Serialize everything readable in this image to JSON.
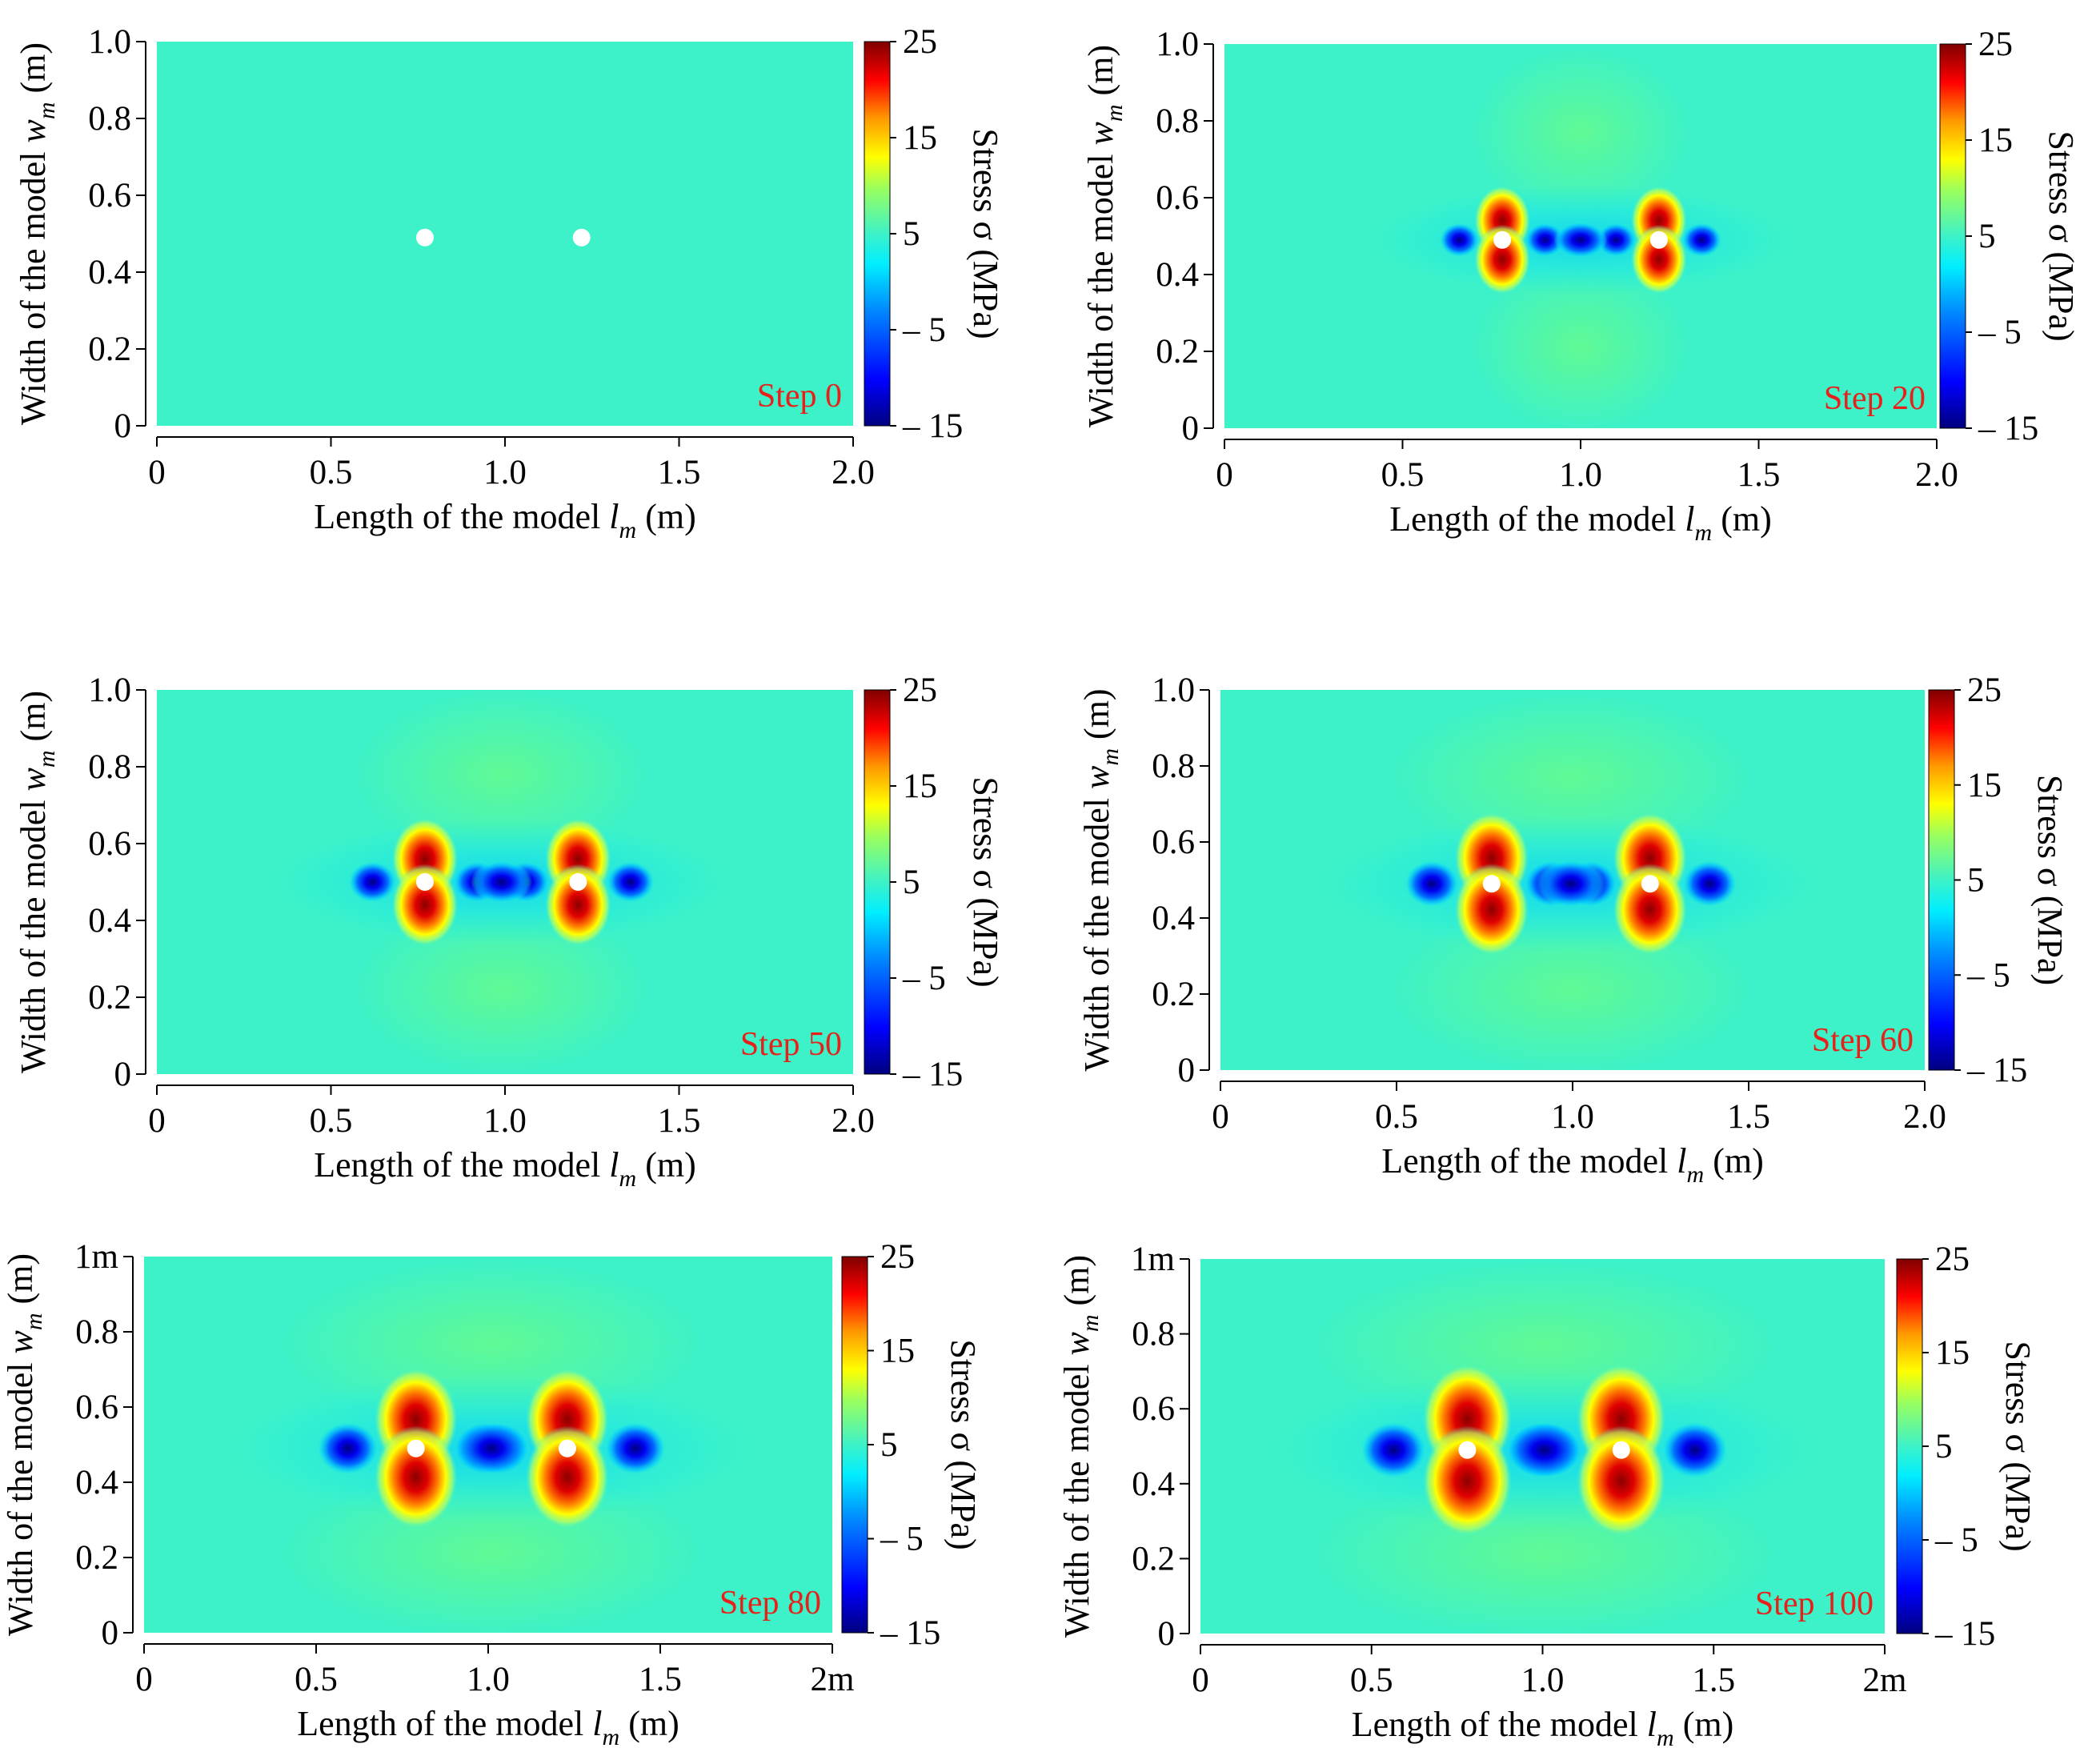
{
  "figure": {
    "colorbar": {
      "label": "Stress  σ  (MPa)",
      "tick_labels": [
        "25",
        "15",
        "5",
        "– 5",
        "– 15"
      ],
      "ticks": [
        25,
        15,
        5,
        -5,
        -15
      ],
      "range": [
        -15,
        25
      ],
      "colormap": [
        "#00007f",
        "#0000ff",
        "#00ffff",
        "#ffff00",
        "#ff0000",
        "#7f0000"
      ],
      "background_stress_color": "#3df2c8"
    },
    "hole_color": "#ffffff"
  },
  "chart_data": [
    {
      "type": "heatmap",
      "step_label": "Step 0",
      "xlabel_main": "Length of the model",
      "xlabel_sym": "l",
      "xlabel_sub": "m",
      "xlabel_unit": "(m)",
      "ylabel_main": "Width of the model",
      "ylabel_sym": "w",
      "ylabel_sub": "m",
      "ylabel_unit": "(m)",
      "xlim": [
        0,
        2.0
      ],
      "ylim": [
        0,
        1.0
      ],
      "x_ticks": [
        0,
        0.5,
        1.0,
        1.5,
        2.0
      ],
      "x_tick_labels": [
        "0",
        "0.5",
        "1.0",
        "1.5",
        "2.0"
      ],
      "y_ticks": [
        0,
        0.2,
        0.4,
        0.6,
        0.8,
        1.0
      ],
      "y_tick_labels": [
        "0",
        "0.2",
        "0.4",
        "0.6",
        "0.8",
        "1.0"
      ],
      "holes": [
        {
          "x": 0.77,
          "y": 0.49
        },
        {
          "x": 1.22,
          "y": 0.49
        }
      ],
      "peak_tension_stress": 0,
      "peak_compression_stress": 0
    },
    {
      "type": "heatmap",
      "step_label": "Step 20",
      "xlabel_main": "Length of the model",
      "xlabel_sym": "l",
      "xlabel_sub": "m",
      "xlabel_unit": "(m)",
      "ylabel_main": "Width of the model",
      "ylabel_sym": "w",
      "ylabel_sub": "m",
      "ylabel_unit": "(m)",
      "xlim": [
        0,
        2.0
      ],
      "ylim": [
        0,
        1.0
      ],
      "x_ticks": [
        0,
        0.5,
        1.0,
        1.5,
        2.0
      ],
      "x_tick_labels": [
        "0",
        "0.5",
        "1.0",
        "1.5",
        "2.0"
      ],
      "y_ticks": [
        0,
        0.2,
        0.4,
        0.6,
        0.8,
        1.0
      ],
      "y_tick_labels": [
        "0",
        "0.2",
        "0.4",
        "0.6",
        "0.8",
        "1.0"
      ],
      "holes": [
        {
          "x": 0.78,
          "y": 0.49
        },
        {
          "x": 1.22,
          "y": 0.49
        }
      ],
      "peak_tension_stress": 25,
      "peak_compression_stress": -15
    },
    {
      "type": "heatmap",
      "step_label": "Step 50",
      "xlabel_main": "Length of the model",
      "xlabel_sym": "l",
      "xlabel_sub": "m",
      "xlabel_unit": "(m)",
      "ylabel_main": "Width of the model",
      "ylabel_sym": "w",
      "ylabel_sub": "m",
      "ylabel_unit": "(m)",
      "xlim": [
        0,
        2.0
      ],
      "ylim": [
        0,
        1.0
      ],
      "x_ticks": [
        0,
        0.5,
        1.0,
        1.5,
        2.0
      ],
      "x_tick_labels": [
        "0",
        "0.5",
        "1.0",
        "1.5",
        "2.0"
      ],
      "y_ticks": [
        0,
        0.2,
        0.4,
        0.6,
        0.8,
        1.0
      ],
      "y_tick_labels": [
        "0",
        "0.2",
        "0.4",
        "0.6",
        "0.8",
        "1.0"
      ],
      "holes": [
        {
          "x": 0.77,
          "y": 0.5
        },
        {
          "x": 1.21,
          "y": 0.5
        }
      ],
      "peak_tension_stress": 25,
      "peak_compression_stress": -15
    },
    {
      "type": "heatmap",
      "step_label": "Step 60",
      "xlabel_main": "Length of the model",
      "xlabel_sym": "l",
      "xlabel_sub": "m",
      "xlabel_unit": "(m)",
      "ylabel_main": "Width of the model",
      "ylabel_sym": "w",
      "ylabel_sub": "m",
      "ylabel_unit": "(m)",
      "xlim": [
        0,
        2.0
      ],
      "ylim": [
        0,
        1.0
      ],
      "x_ticks": [
        0,
        0.5,
        1.0,
        1.5,
        2.0
      ],
      "x_tick_labels": [
        "0",
        "0.5",
        "1.0",
        "1.5",
        "2.0"
      ],
      "y_ticks": [
        0,
        0.2,
        0.4,
        0.6,
        0.8,
        1.0
      ],
      "y_tick_labels": [
        "0",
        "0.2",
        "0.4",
        "0.6",
        "0.8",
        "1.0"
      ],
      "holes": [
        {
          "x": 0.77,
          "y": 0.49
        },
        {
          "x": 1.22,
          "y": 0.49
        }
      ],
      "peak_tension_stress": 25,
      "peak_compression_stress": -15
    },
    {
      "type": "heatmap",
      "step_label": "Step 80",
      "xlabel_main": "Length of the model",
      "xlabel_sym": "l",
      "xlabel_sub": "m",
      "xlabel_unit": "(m)",
      "ylabel_main": "Width of the model",
      "ylabel_sym": "w",
      "ylabel_sub": "m",
      "ylabel_unit": "(m)",
      "xlim": [
        0,
        2.0
      ],
      "ylim": [
        0,
        1.0
      ],
      "x_ticks": [
        0,
        0.5,
        1.0,
        1.5,
        2.0
      ],
      "x_tick_labels": [
        "0",
        "0.5",
        "1.0",
        "1.5",
        "2m"
      ],
      "y_ticks": [
        0,
        0.2,
        0.4,
        0.6,
        0.8,
        1.0
      ],
      "y_tick_labels": [
        "0",
        "0.2",
        "0.4",
        "0.6",
        "0.8",
        "1m"
      ],
      "holes": [
        {
          "x": 0.79,
          "y": 0.49
        },
        {
          "x": 1.23,
          "y": 0.49
        }
      ],
      "peak_tension_stress": 25,
      "peak_compression_stress": -15
    },
    {
      "type": "heatmap",
      "step_label": "Step 100",
      "xlabel_main": "Length of the model",
      "xlabel_sym": "l",
      "xlabel_sub": "m",
      "xlabel_unit": "(m)",
      "ylabel_main": "Width of the model",
      "ylabel_sym": "w",
      "ylabel_sub": "m",
      "ylabel_unit": "(m)",
      "xlim": [
        0,
        2.0
      ],
      "ylim": [
        0,
        1.0
      ],
      "x_ticks": [
        0,
        0.5,
        1.0,
        1.5,
        2.0
      ],
      "x_tick_labels": [
        "0",
        "0.5",
        "1.0",
        "1.5",
        "2m"
      ],
      "y_ticks": [
        0,
        0.2,
        0.4,
        0.6,
        0.8,
        1.0
      ],
      "y_tick_labels": [
        "0",
        "0.2",
        "0.4",
        "0.6",
        "0.8",
        "1m"
      ],
      "holes": [
        {
          "x": 0.78,
          "y": 0.49
        },
        {
          "x": 1.23,
          "y": 0.49
        }
      ],
      "peak_tension_stress": 25,
      "peak_compression_stress": -15
    }
  ]
}
